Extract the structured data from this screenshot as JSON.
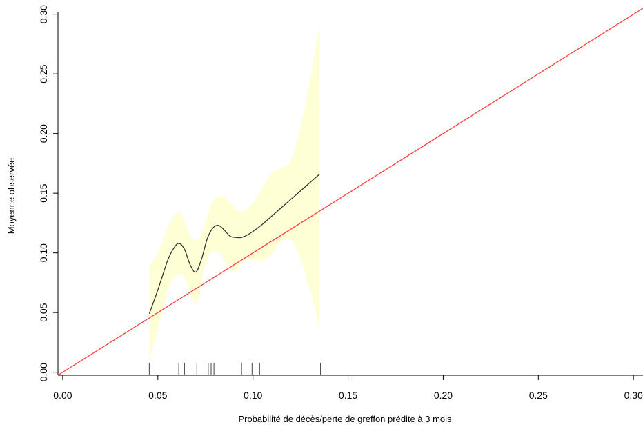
{
  "chart_data": {
    "type": "line",
    "title": "",
    "xlabel": "Probabilité de décès/perte de greffon prédite à 3 mois",
    "ylabel": "Moyenne observée",
    "xlim": [
      -0.0025,
      0.305
    ],
    "ylim": [
      -0.0025,
      0.305
    ],
    "x_ticks": [
      "0.00",
      "0.05",
      "0.10",
      "0.15",
      "0.20",
      "0.25",
      "0.30"
    ],
    "y_ticks": [
      "0.00",
      "0.05",
      "0.10",
      "0.15",
      "0.20",
      "0.25",
      "0.30"
    ],
    "grid": false,
    "colors": {
      "band_fill": "#ffffd6",
      "smooth_line": "#333333",
      "reference_line": "#ff3b3b",
      "rug": "#444444",
      "axis": "#000000"
    },
    "series": [
      {
        "kind": "smooth",
        "x": [
          0.0455,
          0.05,
          0.055,
          0.058,
          0.061,
          0.064,
          0.067,
          0.07,
          0.073,
          0.076,
          0.079,
          0.082,
          0.085,
          0.088,
          0.091,
          0.094,
          0.097,
          0.1,
          0.105,
          0.11,
          0.115,
          0.12,
          0.125,
          0.13,
          0.135
        ],
        "y": [
          0.049,
          0.069,
          0.093,
          0.103,
          0.108,
          0.103,
          0.09,
          0.084,
          0.095,
          0.112,
          0.121,
          0.123,
          0.119,
          0.114,
          0.113,
          0.113,
          0.115,
          0.118,
          0.124,
          0.131,
          0.138,
          0.145,
          0.152,
          0.159,
          0.166
        ]
      },
      {
        "kind": "confidence_band",
        "x": [
          0.0455,
          0.05,
          0.055,
          0.058,
          0.061,
          0.064,
          0.067,
          0.07,
          0.073,
          0.076,
          0.079,
          0.082,
          0.085,
          0.088,
          0.091,
          0.094,
          0.097,
          0.1,
          0.105,
          0.11,
          0.115,
          0.12,
          0.125,
          0.13,
          0.135
        ],
        "upper": [
          0.089,
          0.1,
          0.121,
          0.13,
          0.134,
          0.127,
          0.114,
          0.111,
          0.116,
          0.131,
          0.144,
          0.147,
          0.147,
          0.142,
          0.136,
          0.134,
          0.137,
          0.142,
          0.155,
          0.167,
          0.171,
          0.178,
          0.205,
          0.245,
          0.291
        ],
        "lower": [
          0.01,
          0.036,
          0.067,
          0.078,
          0.082,
          0.08,
          0.067,
          0.058,
          0.075,
          0.095,
          0.101,
          0.1,
          0.094,
          0.087,
          0.083,
          0.092,
          0.095,
          0.094,
          0.094,
          0.099,
          0.11,
          0.111,
          0.095,
          0.069,
          0.037
        ]
      },
      {
        "kind": "reference",
        "x": [
          -0.0025,
          0.305
        ],
        "y": [
          -0.0025,
          0.305
        ]
      }
    ],
    "rug": [
      0.0455,
      0.061,
      0.064,
      0.0705,
      0.0765,
      0.078,
      0.0795,
      0.094,
      0.0995,
      0.1035,
      0.1355
    ]
  }
}
